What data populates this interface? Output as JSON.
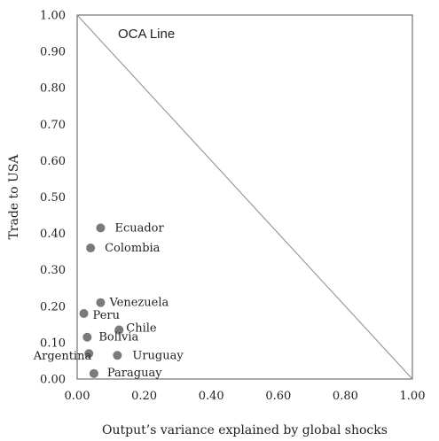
{
  "chart_data": {
    "type": "scatter",
    "xlabel": "Output’s variance explained by global shocks",
    "ylabel": "Trade to USA",
    "xlim": [
      0,
      1
    ],
    "ylim": [
      0,
      1
    ],
    "x_ticks": [
      "0.00",
      "0.20",
      "0.40",
      "0.60",
      "0.80",
      "1.00"
    ],
    "y_ticks": [
      "0.00",
      "0.10",
      "0.20",
      "0.30",
      "0.40",
      "0.50",
      "0.60",
      "0.70",
      "0.80",
      "0.90",
      "1.00"
    ],
    "grid": false,
    "line": {
      "label": "OCA Line",
      "from": [
        0,
        1
      ],
      "to": [
        1,
        0
      ]
    },
    "colors": {
      "points": "#7a7a7a",
      "line": "#9a9a9a",
      "frame": "#555555"
    },
    "points": [
      {
        "label": "Ecuador",
        "x": 0.07,
        "y": 0.415
      },
      {
        "label": "Colombia",
        "x": 0.04,
        "y": 0.36
      },
      {
        "label": "Venezuela",
        "x": 0.07,
        "y": 0.21
      },
      {
        "label": "Peru",
        "x": 0.02,
        "y": 0.18
      },
      {
        "label": "Chile",
        "x": 0.125,
        "y": 0.135
      },
      {
        "label": "Bolivia",
        "x": 0.03,
        "y": 0.115
      },
      {
        "label": "Argentina",
        "x": 0.035,
        "y": 0.07
      },
      {
        "label": "Uruguay",
        "x": 0.12,
        "y": 0.065
      },
      {
        "label": "Paraguay",
        "x": 0.05,
        "y": 0.015
      }
    ]
  }
}
